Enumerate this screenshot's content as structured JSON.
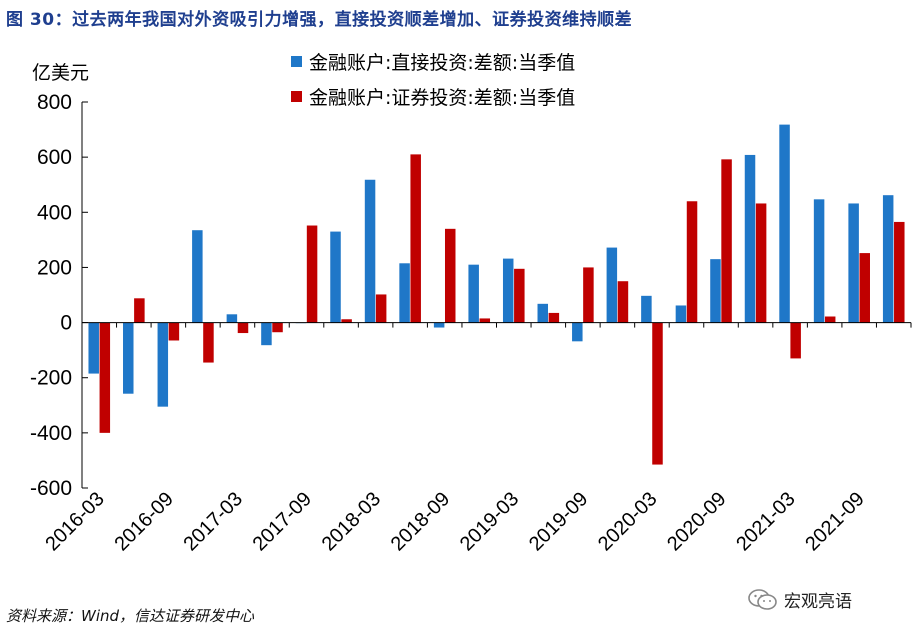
{
  "title": "图 30：过去两年我国对外资吸引力增强，直接投资顺差增加、证券投资维持顺差",
  "source": "资料来源：Wind，信达证券研发中心",
  "watermark": "宏观亮语",
  "watermark_icon": "wechat-icon",
  "colors": {
    "series1": "#1f77c8",
    "series2": "#c00000",
    "title": "#1f3f8f"
  },
  "chart_data": {
    "type": "bar",
    "unit_label": "亿美元",
    "ylim": [
      -600,
      800
    ],
    "yticks": [
      -600,
      -400,
      -200,
      0,
      200,
      400,
      600,
      800
    ],
    "grid": false,
    "legend_position": "top",
    "categories": [
      "2016-03",
      "2016-06",
      "2016-09",
      "2016-12",
      "2017-03",
      "2017-06",
      "2017-09",
      "2017-12",
      "2018-03",
      "2018-06",
      "2018-09",
      "2018-12",
      "2019-03",
      "2019-06",
      "2019-09",
      "2019-12",
      "2020-03",
      "2020-06",
      "2020-09",
      "2020-12",
      "2021-03",
      "2021-06",
      "2021-09",
      "2021-12"
    ],
    "xtick_labels": [
      "2016-03",
      "2016-09",
      "2017-03",
      "2017-09",
      "2018-03",
      "2018-09",
      "2019-03",
      "2019-09",
      "2020-03",
      "2020-09",
      "2021-03",
      "2021-09"
    ],
    "series": [
      {
        "name": "金融账户:直接投资:差额:当季值",
        "values": [
          -185,
          -258,
          -305,
          335,
          30,
          -82,
          0,
          330,
          518,
          215,
          -18,
          210,
          232,
          68,
          -68,
          272,
          97,
          62,
          230,
          608,
          718,
          447,
          432,
          462
        ]
      },
      {
        "name": "金融账户:证券投资:差额:当季值",
        "values": [
          -400,
          88,
          -65,
          -145,
          -38,
          -35,
          352,
          12,
          102,
          610,
          340,
          15,
          195,
          35,
          200,
          150,
          -515,
          440,
          592,
          432,
          -130,
          22,
          252,
          365
        ]
      }
    ]
  }
}
